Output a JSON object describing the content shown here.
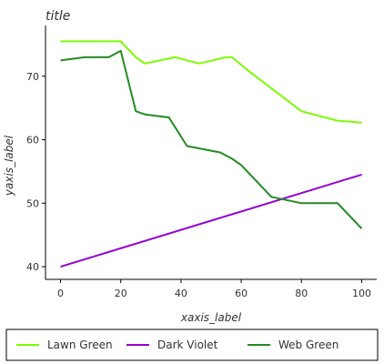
{
  "chart_data": {
    "type": "line",
    "title": "title",
    "xlabel": "xaxis_label",
    "ylabel": "yaxis_label",
    "xlim": [
      -5,
      105
    ],
    "ylim": [
      38,
      78
    ],
    "xticks": [
      0,
      20,
      40,
      60,
      80,
      100
    ],
    "yticks": [
      40,
      50,
      60,
      70
    ],
    "grid": false,
    "legend": "bottom",
    "series": [
      {
        "name": "Lawn Green",
        "color": "#7cfc00",
        "x": [
          0,
          8,
          16,
          20,
          25,
          28,
          38,
          46,
          55,
          57,
          62,
          80,
          84,
          92,
          100
        ],
        "y": [
          75.5,
          75.5,
          75.5,
          75.5,
          73,
          72,
          73,
          72,
          73.0,
          73.0,
          71,
          64.5,
          64,
          63,
          62.7
        ]
      },
      {
        "name": "Dark Violet",
        "color": "#9400d3",
        "x": [
          0,
          100
        ],
        "y": [
          40,
          54.5
        ]
      },
      {
        "name": "Web Green",
        "color": "#228b22",
        "x": [
          0,
          8,
          16,
          20,
          25,
          28,
          36,
          42,
          53,
          57,
          60,
          70,
          80,
          86,
          92,
          100
        ],
        "y": [
          72.5,
          73,
          73,
          74,
          64.5,
          64,
          63.5,
          59,
          58,
          57,
          56,
          51,
          50,
          50,
          50,
          46
        ]
      }
    ]
  }
}
